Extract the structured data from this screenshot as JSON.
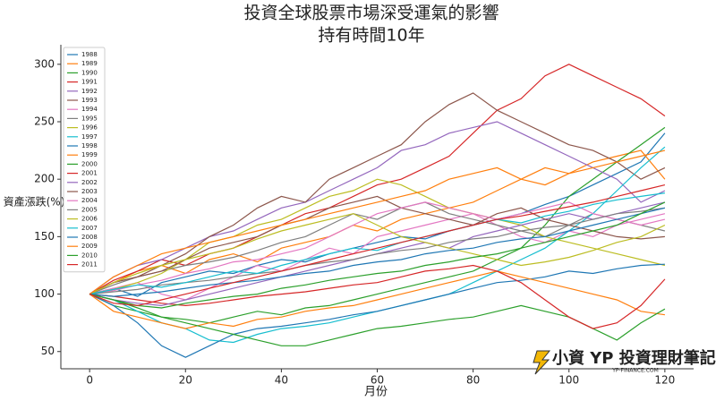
{
  "chart_data": {
    "type": "line",
    "title": "投資全球股票市場深受運氣的影響",
    "subtitle": "持有時間10年",
    "xlabel": "月份",
    "ylabel": "資產漲跌(%)",
    "x": [
      0,
      5,
      10,
      15,
      20,
      25,
      30,
      35,
      40,
      45,
      50,
      55,
      60,
      65,
      70,
      75,
      80,
      85,
      90,
      95,
      100,
      105,
      110,
      115,
      120
    ],
    "xlim": [
      -6,
      126
    ],
    "xticks": [
      0,
      20,
      40,
      60,
      80,
      100,
      120
    ],
    "ylim": [
      35,
      317
    ],
    "yticks": [
      50,
      100,
      150,
      200,
      250,
      300
    ],
    "legend": "upper left",
    "series": [
      {
        "name": "1988",
        "color": "#1f77b4",
        "values": [
          100,
          105,
          98,
          110,
          115,
          120,
          118,
          125,
          130,
          128,
          135,
          140,
          145,
          150,
          148,
          155,
          160,
          165,
          170,
          178,
          185,
          195,
          205,
          215,
          240
        ]
      },
      {
        "name": "1989",
        "color": "#ff7f0e",
        "values": [
          100,
          110,
          120,
          125,
          118,
          130,
          135,
          128,
          140,
          145,
          150,
          160,
          155,
          165,
          170,
          175,
          180,
          190,
          200,
          210,
          205,
          215,
          220,
          225,
          200
        ]
      },
      {
        "name": "1990",
        "color": "#2ca02c",
        "values": [
          100,
          90,
          85,
          80,
          78,
          75,
          80,
          85,
          82,
          88,
          90,
          95,
          100,
          105,
          110,
          115,
          120,
          130,
          140,
          160,
          185,
          200,
          215,
          230,
          245
        ]
      },
      {
        "name": "1991",
        "color": "#d62728",
        "values": [
          100,
          112,
          120,
          130,
          125,
          135,
          140,
          150,
          160,
          170,
          175,
          185,
          195,
          200,
          210,
          220,
          240,
          260,
          270,
          290,
          300,
          290,
          280,
          270,
          255
        ]
      },
      {
        "name": "1992",
        "color": "#9467bd",
        "values": [
          100,
          115,
          125,
          130,
          140,
          150,
          155,
          165,
          175,
          180,
          190,
          200,
          210,
          225,
          230,
          240,
          245,
          250,
          240,
          230,
          220,
          210,
          200,
          180,
          190
        ]
      },
      {
        "name": "1993",
        "color": "#8c564b",
        "values": [
          100,
          110,
          115,
          125,
          135,
          150,
          160,
          175,
          185,
          180,
          200,
          210,
          220,
          230,
          250,
          265,
          275,
          260,
          250,
          240,
          230,
          225,
          215,
          200,
          210
        ]
      },
      {
        "name": "1994",
        "color": "#e377c2",
        "values": [
          100,
          105,
          110,
          100,
          95,
          105,
          115,
          125,
          120,
          130,
          140,
          135,
          150,
          155,
          160,
          165,
          170,
          160,
          150,
          145,
          155,
          150,
          160,
          165,
          170
        ]
      },
      {
        "name": "1995",
        "color": "#7f7f7f",
        "values": [
          100,
          108,
          115,
          120,
          125,
          128,
          132,
          138,
          145,
          150,
          160,
          170,
          165,
          175,
          180,
          170,
          165,
          160,
          155,
          150,
          160,
          170,
          165,
          160,
          155
        ]
      },
      {
        "name": "1996",
        "color": "#bcbd22",
        "values": [
          100,
          104,
          110,
          118,
          130,
          145,
          150,
          160,
          165,
          175,
          185,
          190,
          200,
          195,
          185,
          175,
          170,
          165,
          160,
          150,
          145,
          140,
          135,
          130,
          125
        ]
      },
      {
        "name": "1997",
        "color": "#17becf",
        "values": [
          100,
          95,
          85,
          75,
          70,
          60,
          58,
          65,
          70,
          72,
          75,
          80,
          85,
          90,
          95,
          100,
          110,
          120,
          130,
          140,
          155,
          170,
          190,
          210,
          228
        ]
      },
      {
        "name": "1998",
        "color": "#1f77b4",
        "values": [
          100,
          90,
          75,
          55,
          45,
          55,
          65,
          70,
          72,
          75,
          78,
          82,
          85,
          90,
          95,
          100,
          105,
          110,
          112,
          115,
          120,
          118,
          122,
          125,
          126
        ]
      },
      {
        "name": "1999",
        "color": "#ff7f0e",
        "values": [
          100,
          85,
          80,
          75,
          70,
          75,
          72,
          78,
          80,
          85,
          88,
          90,
          95,
          100,
          105,
          110,
          115,
          120,
          115,
          110,
          105,
          100,
          95,
          85,
          82
        ]
      },
      {
        "name": "2000",
        "color": "#2ca02c",
        "values": [
          100,
          95,
          88,
          80,
          75,
          70,
          65,
          60,
          55,
          55,
          60,
          65,
          70,
          72,
          75,
          78,
          80,
          85,
          90,
          85,
          80,
          70,
          60,
          75,
          87
        ]
      },
      {
        "name": "2001",
        "color": "#d62728",
        "values": [
          100,
          98,
          95,
          92,
          90,
          92,
          95,
          98,
          100,
          102,
          105,
          108,
          110,
          115,
          120,
          122,
          125,
          120,
          110,
          95,
          80,
          70,
          75,
          90,
          113
        ]
      },
      {
        "name": "2002",
        "color": "#9467bd",
        "values": [
          100,
          95,
          92,
          90,
          95,
          100,
          105,
          110,
          115,
          120,
          125,
          130,
          135,
          140,
          145,
          140,
          150,
          155,
          160,
          165,
          170,
          165,
          170,
          175,
          180
        ]
      },
      {
        "name": "2003",
        "color": "#8c564b",
        "values": [
          100,
          110,
          115,
          120,
          130,
          140,
          145,
          150,
          160,
          165,
          175,
          180,
          185,
          175,
          170,
          165,
          160,
          170,
          175,
          165,
          160,
          155,
          150,
          148,
          150
        ]
      },
      {
        "name": "2004",
        "color": "#e377c2",
        "values": [
          100,
          103,
          108,
          112,
          118,
          122,
          128,
          130,
          135,
          140,
          150,
          160,
          170,
          175,
          180,
          175,
          170,
          165,
          170,
          175,
          180,
          170,
          165,
          160,
          165
        ]
      },
      {
        "name": "2005",
        "color": "#7f7f7f",
        "values": [
          100,
          102,
          104,
          108,
          110,
          112,
          115,
          118,
          120,
          125,
          128,
          130,
          135,
          138,
          140,
          145,
          148,
          150,
          155,
          158,
          160,
          165,
          170,
          172,
          175
        ]
      },
      {
        "name": "2006",
        "color": "#bcbd22",
        "values": [
          100,
          110,
          118,
          125,
          130,
          135,
          140,
          148,
          155,
          160,
          165,
          170,
          160,
          150,
          145,
          140,
          135,
          130,
          125,
          128,
          132,
          138,
          145,
          150,
          160
        ]
      },
      {
        "name": "2007",
        "color": "#17becf",
        "values": [
          100,
          104,
          108,
          106,
          110,
          115,
          120,
          118,
          125,
          130,
          135,
          140,
          138,
          145,
          150,
          155,
          160,
          165,
          162,
          168,
          172,
          178,
          182,
          185,
          188
        ]
      },
      {
        "name": "2008",
        "color": "#1f77b4",
        "values": [
          100,
          98,
          100,
          102,
          105,
          108,
          110,
          112,
          115,
          118,
          120,
          125,
          128,
          130,
          135,
          138,
          140,
          145,
          148,
          150,
          155,
          160,
          165,
          170,
          175
        ]
      },
      {
        "name": "2009",
        "color": "#ff7f0e",
        "values": [
          100,
          115,
          125,
          135,
          140,
          145,
          150,
          155,
          160,
          165,
          170,
          175,
          180,
          185,
          190,
          200,
          205,
          210,
          200,
          195,
          205,
          210,
          215,
          220,
          225
        ]
      },
      {
        "name": "2010",
        "color": "#2ca02c",
        "values": [
          100,
          95,
          90,
          88,
          92,
          95,
          98,
          100,
          105,
          108,
          112,
          115,
          118,
          120,
          125,
          128,
          132,
          135,
          140,
          145,
          150,
          155,
          160,
          170,
          180
        ]
      },
      {
        "name": "2011",
        "color": "#d62728",
        "values": [
          100,
          92,
          90,
          95,
          100,
          105,
          110,
          115,
          120,
          125,
          130,
          135,
          140,
          145,
          150,
          155,
          160,
          165,
          168,
          172,
          176,
          180,
          185,
          190,
          195
        ]
      }
    ]
  },
  "logo": {
    "text": "小資 YP 投資理財筆記",
    "url": "YP-FINANCE.COM"
  }
}
